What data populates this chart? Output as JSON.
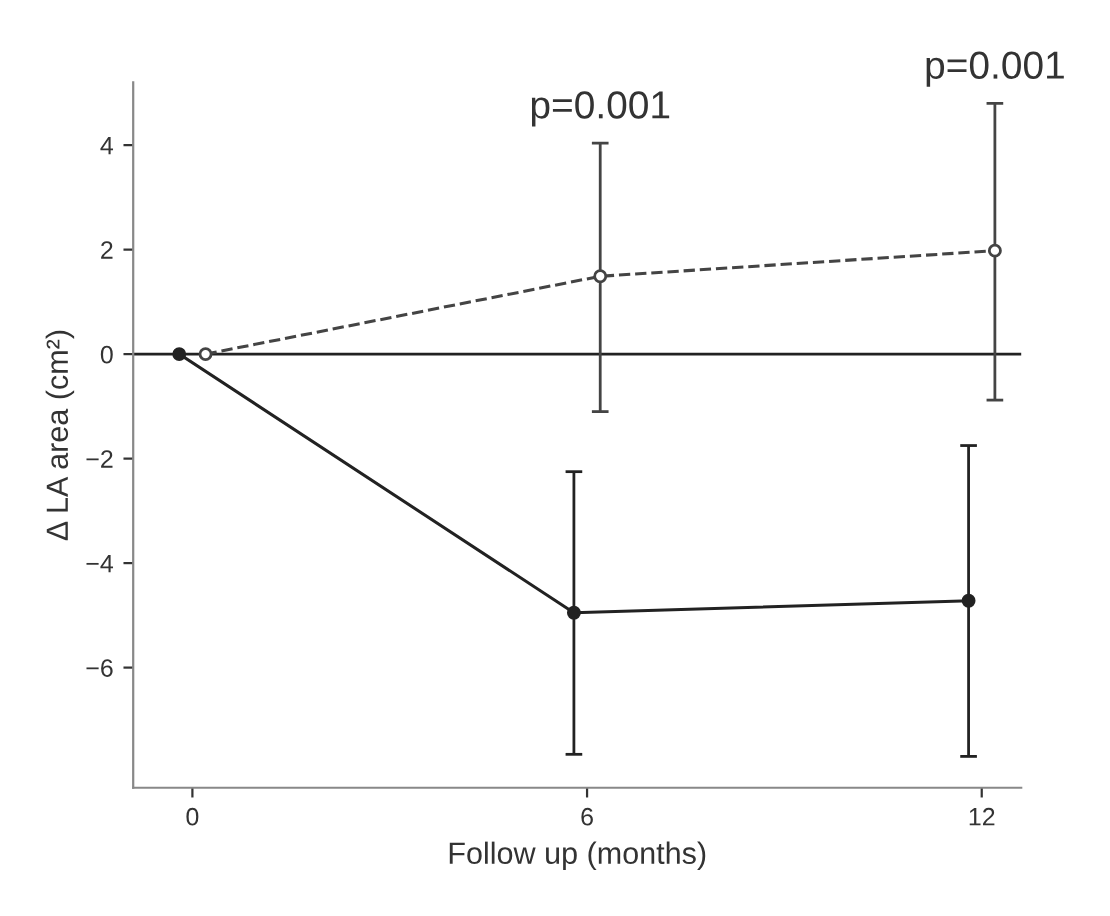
{
  "chart_data": {
    "type": "line",
    "xlabel": "Follow up (months)",
    "ylabel": "Δ LA area (cm²)",
    "xlim": [
      -0.9,
      12.6
    ],
    "xticks": [
      0,
      6,
      12
    ],
    "ylim": [
      -8.3,
      5.2
    ],
    "yticks": [
      {
        "value": 4,
        "label": "4"
      },
      {
        "value": 2,
        "label": "2"
      },
      {
        "value": 0,
        "label": "0"
      },
      {
        "value": -2,
        "label": "−2"
      },
      {
        "value": -4,
        "label": "−4"
      },
      {
        "value": -6,
        "label": "−6"
      }
    ],
    "series": [
      {
        "x": [
          -0.2,
          5.8,
          11.8
        ],
        "values": [
          0,
          -4.95,
          -4.72
        ],
        "errors": [
          null,
          [
            -7.66,
            -2.25
          ],
          [
            -7.7,
            -1.75
          ]
        ],
        "color": "#222222",
        "marker": "circle",
        "line_style": "solid"
      },
      {
        "x": [
          0.2,
          6.2,
          12.2
        ],
        "values": [
          0,
          1.49,
          1.98
        ],
        "errors": [
          null,
          [
            -1.1,
            4.04
          ],
          [
            -0.88,
            4.8
          ]
        ],
        "color": "#444444",
        "marker": "circle",
        "line_style": "dashed"
      }
    ],
    "ref_lines": [
      {
        "axis": "y",
        "value": 0,
        "color": "#222222"
      }
    ],
    "annotations": [
      "p=0.001",
      "p=0.001"
    ],
    "grid": false,
    "legend": false
  }
}
